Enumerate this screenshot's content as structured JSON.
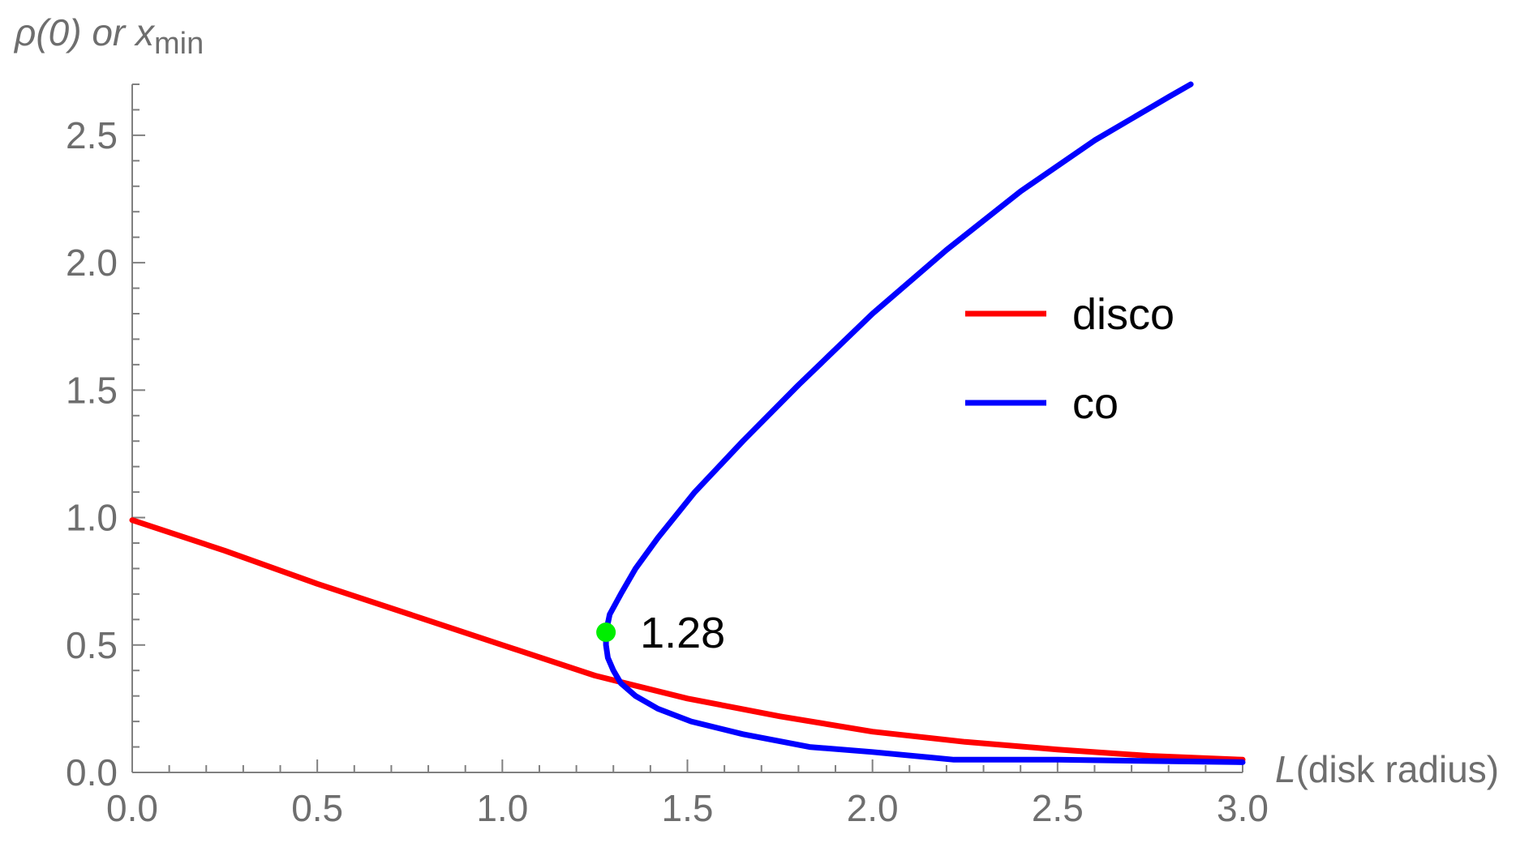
{
  "chart_data": {
    "type": "line",
    "title": "",
    "xlabel": {
      "italic": "L",
      "rest": "(disk radius)"
    },
    "ylabel": {
      "prefix": "ρ(0) or ",
      "var": "x",
      "sub": "min"
    },
    "xlim": [
      0,
      3
    ],
    "ylim": [
      0,
      2.7
    ],
    "xticks": [
      "0.0",
      "0.5",
      "1.0",
      "1.5",
      "2.0",
      "2.5",
      "3.0"
    ],
    "yticks": [
      "0.0",
      "0.5",
      "1.0",
      "1.5",
      "2.0",
      "2.5"
    ],
    "legend_position": "right",
    "grid": false,
    "series": [
      {
        "name": "disco",
        "color": "#ff0000",
        "points": [
          [
            0.0,
            0.99
          ],
          [
            0.25,
            0.87
          ],
          [
            0.5,
            0.74
          ],
          [
            0.75,
            0.62
          ],
          [
            1.0,
            0.5
          ],
          [
            1.25,
            0.38
          ],
          [
            1.5,
            0.29
          ],
          [
            1.75,
            0.22
          ],
          [
            2.0,
            0.16
          ],
          [
            2.25,
            0.12
          ],
          [
            2.5,
            0.09
          ],
          [
            2.75,
            0.065
          ],
          [
            3.0,
            0.05
          ]
        ]
      },
      {
        "name": "co",
        "color": "#0000ff",
        "points": [
          [
            3.0,
            0.04
          ],
          [
            2.5,
            0.05
          ],
          [
            2.22,
            0.05
          ],
          [
            2.0,
            0.08
          ],
          [
            1.83,
            0.1
          ],
          [
            1.65,
            0.15
          ],
          [
            1.51,
            0.2
          ],
          [
            1.42,
            0.25
          ],
          [
            1.36,
            0.3
          ],
          [
            1.32,
            0.35
          ],
          [
            1.3,
            0.4
          ],
          [
            1.285,
            0.45
          ],
          [
            1.28,
            0.5
          ],
          [
            1.28,
            0.55
          ],
          [
            1.29,
            0.62
          ],
          [
            1.32,
            0.7
          ],
          [
            1.36,
            0.8
          ],
          [
            1.42,
            0.92
          ],
          [
            1.52,
            1.1
          ],
          [
            1.65,
            1.3
          ],
          [
            1.8,
            1.52
          ],
          [
            2.0,
            1.8
          ],
          [
            2.2,
            2.05
          ],
          [
            2.4,
            2.28
          ],
          [
            2.6,
            2.48
          ],
          [
            2.8,
            2.65
          ],
          [
            2.86,
            2.7
          ]
        ]
      }
    ],
    "annotations": [
      {
        "label": "1.28",
        "x": 1.28,
        "y": 0.55,
        "marker_color": "#00ee00"
      }
    ]
  }
}
